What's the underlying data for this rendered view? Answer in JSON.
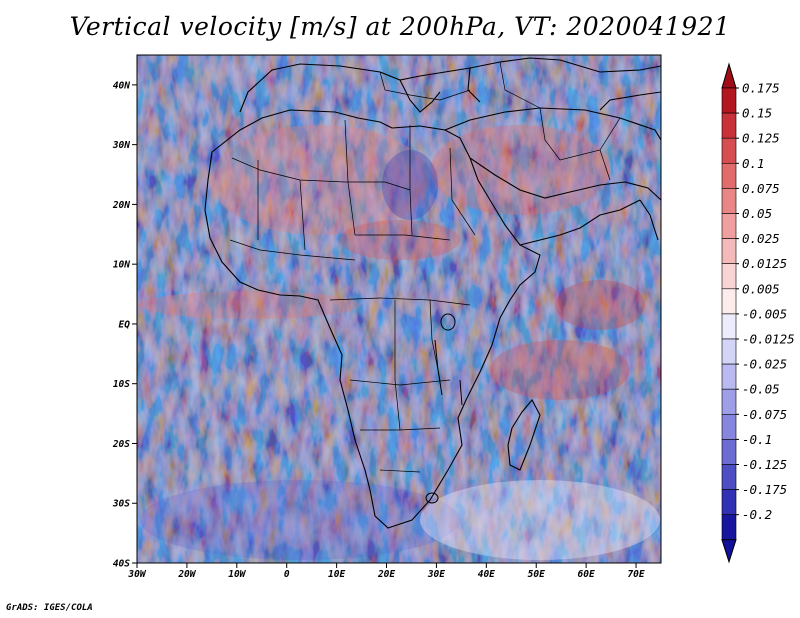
{
  "title": "Vertical velocity [m/s] at 200hPa, VT: 2020041921",
  "credit": "GrADS: IGES/COLA",
  "map": {
    "lat_labels": [
      "40N",
      "30N",
      "20N",
      "10N",
      "EQ",
      "10S",
      "20S",
      "30S",
      "40S"
    ],
    "lon_labels": [
      "30W",
      "20W",
      "10W",
      "0",
      "10E",
      "20E",
      "30E",
      "40E",
      "50E",
      "60E",
      "70E"
    ],
    "lat_range": [
      -40,
      45
    ],
    "lon_range": [
      -30,
      75
    ]
  },
  "colorbar": {
    "labels": [
      "0.175",
      "0.15",
      "0.125",
      "0.1",
      "0.075",
      "0.05",
      "0.025",
      "0.0125",
      "0.005",
      "-0.005",
      "-0.0125",
      "-0.025",
      "-0.05",
      "-0.075",
      "-0.1",
      "-0.125",
      "-0.175",
      "-0.2"
    ],
    "colors": [
      "#b2161e",
      "#c8313a",
      "#d64e52",
      "#e06c6c",
      "#e98686",
      "#ef9f9f",
      "#f4baba",
      "#f8d4d4",
      "#fcecec",
      "#ececfc",
      "#d4d4f6",
      "#babaf0",
      "#9f9fe8",
      "#8686de",
      "#6c6cd2",
      "#4e4ec4",
      "#3131b4",
      "#16169e"
    ],
    "top_arrow_color": "#a00d16",
    "bottom_arrow_color": "#10109a"
  }
}
